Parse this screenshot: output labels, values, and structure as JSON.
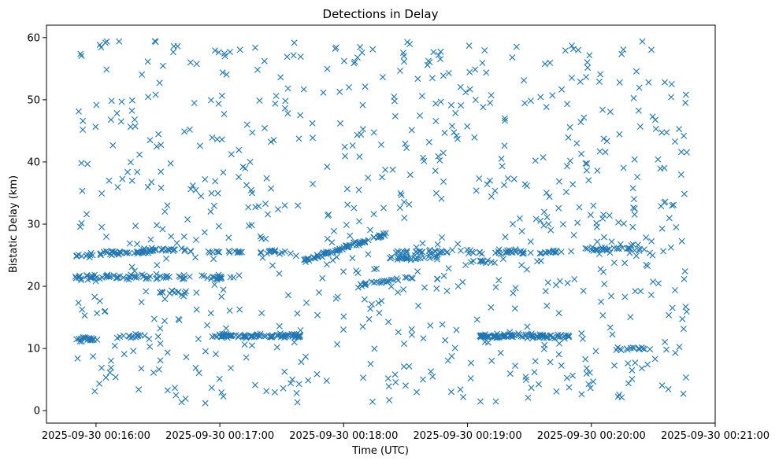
{
  "chart_data": {
    "type": "scatter",
    "title": "Detections in Delay",
    "xlabel": "Time (UTC)",
    "ylabel": "Bistatic Delay (km)",
    "marker": "x",
    "color": "#1f77b4",
    "grid": false,
    "legend": "none",
    "xlim": [
      "2025-09-30 00:15:36",
      "2025-09-30 00:21:00"
    ],
    "ylim": [
      -2,
      62
    ],
    "xticks": [
      "2025-09-30 00:16:00",
      "2025-09-30 00:17:00",
      "2025-09-30 00:18:00",
      "2025-09-30 00:19:00",
      "2025-09-30 00:20:00",
      "2025-09-30 00:21:00"
    ],
    "yticks": [
      0,
      10,
      20,
      30,
      40,
      50,
      60
    ],
    "data_window": [
      "2025-09-30 00:15:50",
      "2025-09-30 00:20:47"
    ],
    "tracks": [
      {
        "from": "2025-09-30 00:15:50",
        "to": "2025-09-30 00:16:44",
        "y_start": 21.5,
        "y_end": 21.5,
        "count": 60
      },
      {
        "from": "2025-09-30 00:16:50",
        "to": "2025-09-30 00:17:14",
        "y_start": 21.5,
        "y_end": 21.5,
        "count": 18
      },
      {
        "from": "2025-09-30 00:15:50",
        "to": "2025-09-30 00:16:44",
        "y_start": 25.0,
        "y_end": 26.0,
        "count": 70
      },
      {
        "from": "2025-09-30 00:16:44",
        "to": "2025-09-30 00:17:32",
        "y_start": 25.5,
        "y_end": 25.5,
        "count": 30
      },
      {
        "from": "2025-09-30 00:17:40",
        "to": "2025-09-30 00:18:22",
        "y_start": 24.0,
        "y_end": 28.5,
        "count": 70
      },
      {
        "from": "2025-09-30 00:18:22",
        "to": "2025-09-30 00:19:46",
        "y_start": 25.5,
        "y_end": 25.5,
        "count": 70
      },
      {
        "from": "2025-09-30 00:19:56",
        "to": "2025-09-30 00:20:26",
        "y_start": 26.0,
        "y_end": 26.0,
        "count": 25
      },
      {
        "from": "2025-09-30 00:15:50",
        "to": "2025-09-30 00:16:02",
        "y_start": 11.5,
        "y_end": 11.5,
        "count": 20
      },
      {
        "from": "2025-09-30 00:16:10",
        "to": "2025-09-30 00:16:24",
        "y_start": 12.0,
        "y_end": 12.0,
        "count": 15
      },
      {
        "from": "2025-09-30 00:16:56",
        "to": "2025-09-30 00:17:40",
        "y_start": 12.0,
        "y_end": 12.0,
        "count": 90
      },
      {
        "from": "2025-09-30 00:19:06",
        "to": "2025-09-30 00:19:50",
        "y_start": 12.0,
        "y_end": 12.0,
        "count": 90
      },
      {
        "from": "2025-09-30 00:18:04",
        "to": "2025-09-30 00:18:34",
        "y_start": 20.0,
        "y_end": 21.5,
        "count": 25
      },
      {
        "from": "2025-09-30 00:18:20",
        "to": "2025-09-30 00:18:46",
        "y_start": 24.5,
        "y_end": 24.5,
        "count": 25
      },
      {
        "from": "2025-09-30 00:20:10",
        "to": "2025-09-30 00:20:30",
        "y_start": 10.0,
        "y_end": 10.0,
        "count": 15
      },
      {
        "from": "2025-09-30 00:16:30",
        "to": "2025-09-30 00:16:44",
        "y_start": 19.0,
        "y_end": 19.0,
        "count": 12
      },
      {
        "from": "2025-09-30 00:19:00",
        "to": "2025-09-30 00:19:14",
        "y_start": 24.0,
        "y_end": 24.0,
        "count": 10
      }
    ],
    "clutter_count": 750
  }
}
